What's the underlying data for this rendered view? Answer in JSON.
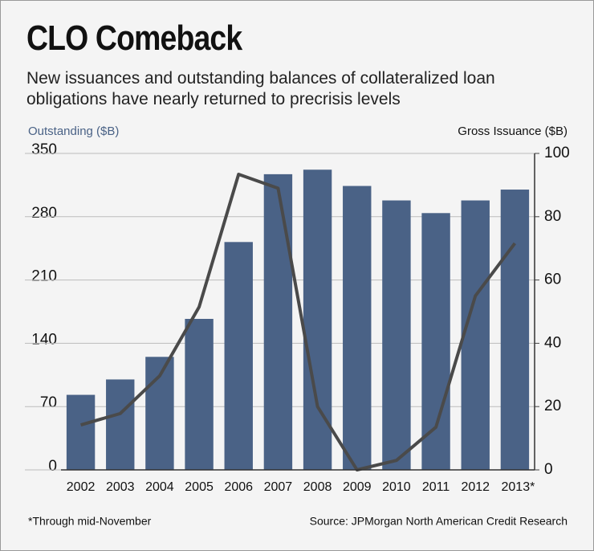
{
  "chart_data": {
    "type": "bar-line",
    "title": "CLO Comeback",
    "subtitle": "New issuances and outstanding balances of collateralized loan obligations have nearly returned to precrisis levels",
    "y_label": "Outstanding ($B)",
    "y2_label": "Gross Issuance ($B)",
    "categories": [
      "2002",
      "2003",
      "2004",
      "2005",
      "2006",
      "2007",
      "2008",
      "2009",
      "2010",
      "2011",
      "2012",
      "2013*"
    ],
    "series": [
      {
        "name": "Outstanding",
        "type": "bar",
        "color": "#4a6286",
        "values": [
          83,
          100,
          125,
          167,
          252,
          327,
          332,
          314,
          298,
          284,
          298,
          310
        ]
      },
      {
        "name": "Gross Issuance",
        "type": "line",
        "axis": "y2",
        "color": "#4a4a4a",
        "values": [
          14.2,
          17.8,
          29.7,
          51.5,
          93.4,
          89,
          20,
          0,
          3,
          13.5,
          55,
          71.6
        ]
      }
    ],
    "ylim": [
      0,
      350
    ],
    "yticks": [
      0,
      70,
      140,
      210,
      280,
      350
    ],
    "y2lim": [
      0,
      100
    ],
    "y2ticks": [
      0,
      20,
      40,
      60,
      80,
      100
    ],
    "grid": true,
    "footnote": "*Through mid-November",
    "source": "Source: JPMorgan North American Credit Research"
  }
}
